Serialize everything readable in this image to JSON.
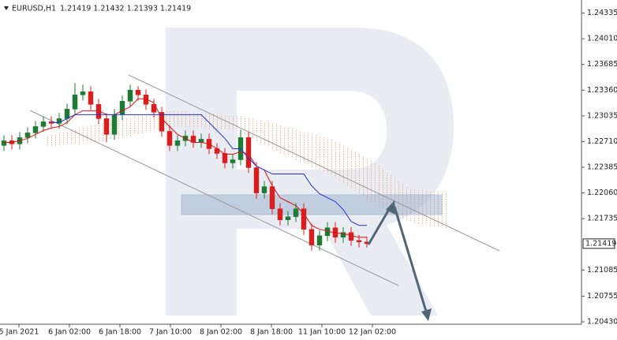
{
  "chart_data": {
    "type": "candlestick",
    "symbol": "EURUSD,H1",
    "header_prices": "1.21419 1.21432 1.21393 1.21419",
    "last_price": 1.21419,
    "up_color": "#1e7b34",
    "down_color": "#d62020",
    "ylim": [
      1.204,
      1.245
    ],
    "yticks": [
      1.24335,
      {
        "value": 1.2401,
        "label": "1.24010"
      },
      1.23685,
      {
        "value": 1.2336,
        "label": "1.23360"
      },
      1.23035,
      {
        "value": 1.2271,
        "label": "1.22710"
      },
      1.22385,
      {
        "value": 1.2206,
        "label": "1.22060"
      },
      1.21735,
      1.21085,
      1.20755,
      {
        "value": 1.2043,
        "label": "1.20430"
      }
    ],
    "xlim": [
      0,
      73.7
    ],
    "xticks": [
      {
        "value": 2.4,
        "label": "5 Jan 2021"
      },
      {
        "value": 8.8,
        "label": "6 Jan 02:00"
      },
      {
        "value": 15.2,
        "label": "6 Jan 18:00"
      },
      {
        "value": 21.6,
        "label": "7 Jan 10:00"
      },
      {
        "value": 28,
        "label": "8 Jan 02:00"
      },
      {
        "value": 34.4,
        "label": "8 Jan 18:00"
      },
      {
        "value": 40.8,
        "label": "11 Jan 10:00"
      },
      {
        "value": 47.2,
        "label": "12 Jan 02:00"
      }
    ],
    "open": [
      1.2266,
      1.2272,
      1.2268,
      1.2276,
      1.2282,
      1.229,
      1.2296,
      1.2294,
      1.23,
      1.2312,
      1.233,
      1.2334,
      1.2318,
      1.23,
      1.228,
      1.2305,
      1.2322,
      1.2336,
      1.233,
      1.2318,
      1.2308,
      1.2284,
      1.2266,
      1.2272,
      1.2278,
      1.227,
      1.2274,
      1.2262,
      1.2256,
      1.2244,
      1.2248,
      1.2276,
      1.2238,
      1.2206,
      1.2214,
      1.2186,
      1.2172,
      1.2176,
      1.2186,
      1.216,
      1.214,
      1.2152,
      1.2162,
      1.215,
      1.2156,
      1.2146,
      1.2144
    ],
    "high": [
      1.2279,
      1.2279,
      1.2283,
      1.2289,
      1.2297,
      1.2303,
      1.2303,
      1.2307,
      1.2319,
      1.2345,
      1.2343,
      1.2341,
      1.2325,
      1.2307,
      1.2312,
      1.2329,
      1.2343,
      1.2341,
      1.2337,
      1.2325,
      1.2315,
      1.2291,
      1.2279,
      1.2285,
      1.2285,
      1.2281,
      1.2281,
      1.2269,
      1.2263,
      1.2255,
      1.2286,
      1.2283,
      1.2245,
      1.2221,
      1.2221,
      1.2193,
      1.2183,
      1.2193,
      1.2193,
      1.2167,
      1.2159,
      1.2169,
      1.2169,
      1.2163,
      1.2163,
      1.2153,
      1.2151
    ],
    "low": [
      1.2259,
      1.2261,
      1.2261,
      1.2269,
      1.2275,
      1.2283,
      1.2287,
      1.2287,
      1.2293,
      1.2305,
      1.2323,
      1.2311,
      1.2293,
      1.227,
      1.2273,
      1.2298,
      1.2315,
      1.2323,
      1.2311,
      1.2301,
      1.2277,
      1.2259,
      1.2259,
      1.2265,
      1.2263,
      1.2263,
      1.2255,
      1.2249,
      1.2237,
      1.2237,
      1.2241,
      1.2231,
      1.2199,
      1.2199,
      1.2179,
      1.2165,
      1.2165,
      1.2169,
      1.2153,
      1.2133,
      1.2133,
      1.2145,
      1.2143,
      1.2143,
      1.2139,
      1.2137,
      1.2137
    ],
    "close": [
      1.2272,
      1.2268,
      1.2276,
      1.2282,
      1.229,
      1.2296,
      1.2294,
      1.23,
      1.2312,
      1.233,
      1.2334,
      1.2318,
      1.23,
      1.228,
      1.2305,
      1.2322,
      1.2336,
      1.233,
      1.2318,
      1.2308,
      1.2284,
      1.2266,
      1.2272,
      1.2278,
      1.227,
      1.2274,
      1.2262,
      1.2256,
      1.2244,
      1.2248,
      1.2276,
      1.2238,
      1.2206,
      1.2214,
      1.2186,
      1.2172,
      1.2176,
      1.2186,
      1.216,
      1.214,
      1.2152,
      1.2162,
      1.215,
      1.2156,
      1.2146,
      1.2144,
      1.21419
    ],
    "lines": [
      {
        "color": "#e01010",
        "values": [
          1.227,
          1.227,
          1.2272,
          1.2275,
          1.228,
          1.2285,
          1.2288,
          1.229,
          1.2295,
          1.2305,
          1.231,
          1.231,
          1.231,
          1.2305,
          1.2305,
          1.231,
          1.2315,
          1.2325,
          1.2325,
          1.232,
          1.23,
          1.229,
          1.228,
          1.2275,
          1.227,
          1.227,
          1.2268,
          1.2262,
          1.2255,
          1.2255,
          1.2258,
          1.2255,
          1.224,
          1.2235,
          1.2215,
          1.22,
          1.2195,
          1.219,
          1.218,
          1.2165,
          1.216,
          1.2158,
          1.2155,
          1.2155,
          1.2152,
          1.215,
          1.215
        ]
      },
      {
        "color": "#2233dd",
        "values": [
          null,
          null,
          null,
          null,
          null,
          null,
          1.2295,
          1.2295,
          1.23,
          1.2305,
          1.2305,
          1.2305,
          1.2305,
          1.2305,
          1.2305,
          1.2305,
          1.2305,
          1.2305,
          1.2305,
          1.2305,
          1.2305,
          1.2305,
          1.2305,
          1.2305,
          1.2305,
          1.2305,
          1.2295,
          1.2285,
          1.2275,
          1.2262,
          1.2262,
          1.225,
          1.224,
          1.2235,
          1.223,
          1.223,
          1.223,
          1.223,
          1.223,
          1.2215,
          1.2205,
          1.22,
          1.2195,
          1.2185,
          1.217,
          1.2165,
          1.2165
        ]
      }
    ]
  }
}
